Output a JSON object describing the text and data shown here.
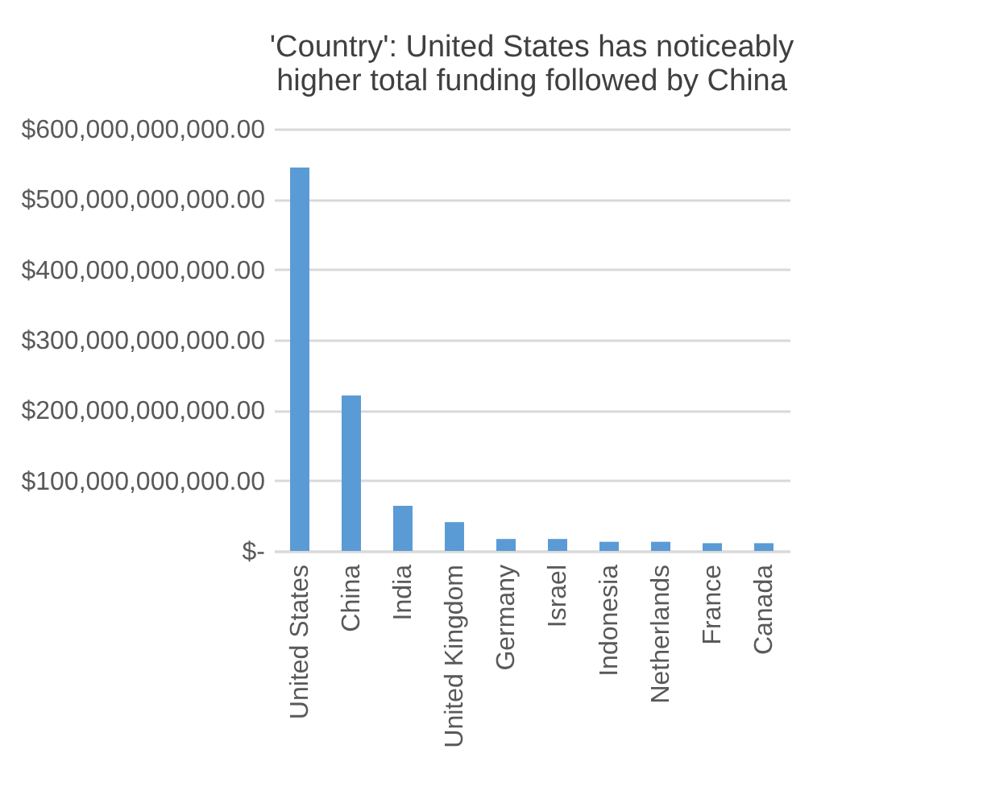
{
  "chart_data": {
    "type": "bar",
    "title": [
      "'Country': United States has noticeably",
      "higher total funding followed by China"
    ],
    "categories": [
      "United States",
      "China",
      "India",
      "United Kingdom",
      "Germany",
      "Israel",
      "Indonesia",
      "Netherlands",
      "France",
      "Canada"
    ],
    "values": [
      545000000000,
      221000000000,
      64000000000,
      41000000000,
      17000000000,
      17000000000,
      13000000000,
      13000000000,
      11000000000,
      11000000000
    ],
    "color": "#5b9bd5",
    "ylim": [
      0,
      600000000000
    ],
    "yticks": [
      {
        "value": 0,
        "label": "$-"
      },
      {
        "value": 100000000000,
        "label": "$100,000,000,000.00"
      },
      {
        "value": 200000000000,
        "label": "$200,000,000,000.00"
      },
      {
        "value": 300000000000,
        "label": "$300,000,000,000.00"
      },
      {
        "value": 400000000000,
        "label": "$400,000,000,000.00"
      },
      {
        "value": 500000000000,
        "label": "$500,000,000,000.00"
      },
      {
        "value": 600000000000,
        "label": "$600,000,000,000.00"
      }
    ],
    "grid": "y"
  }
}
